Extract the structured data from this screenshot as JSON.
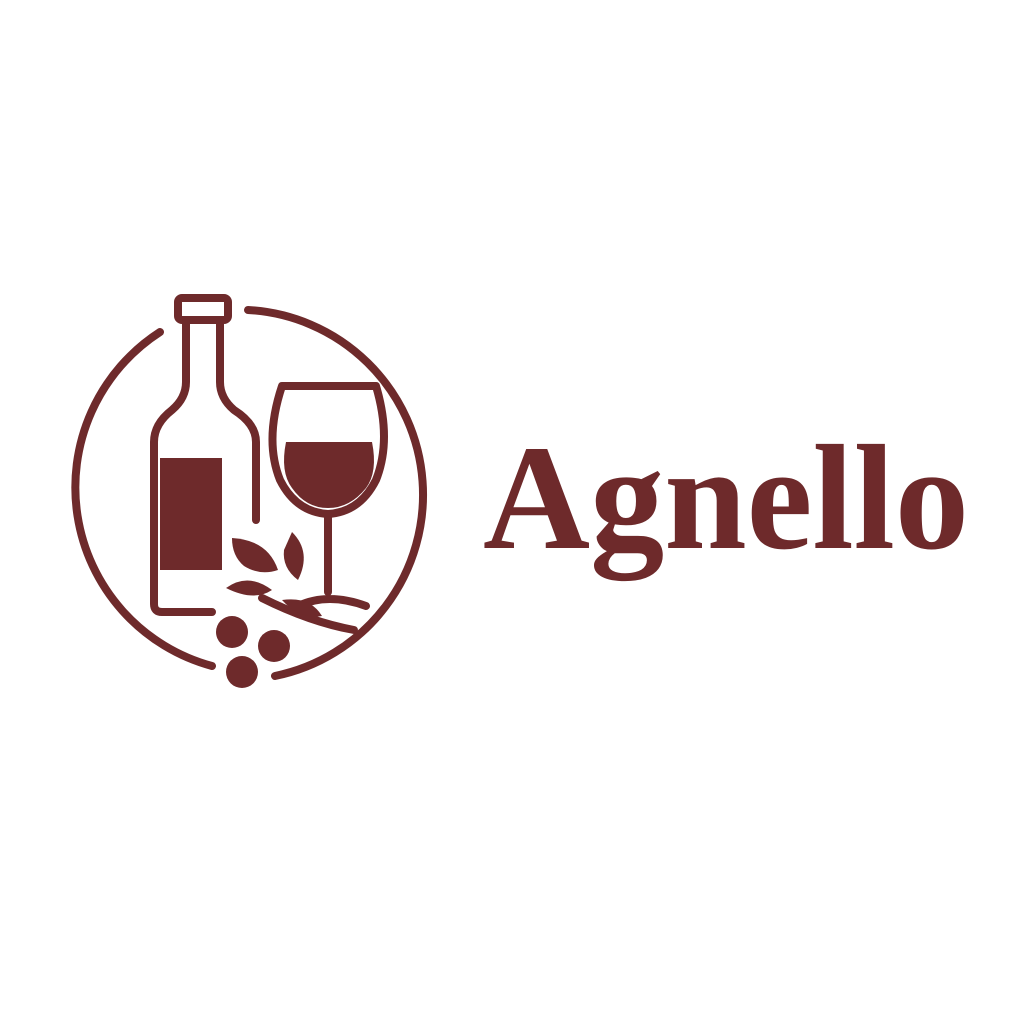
{
  "logo": {
    "name": "Agnello"
  }
}
